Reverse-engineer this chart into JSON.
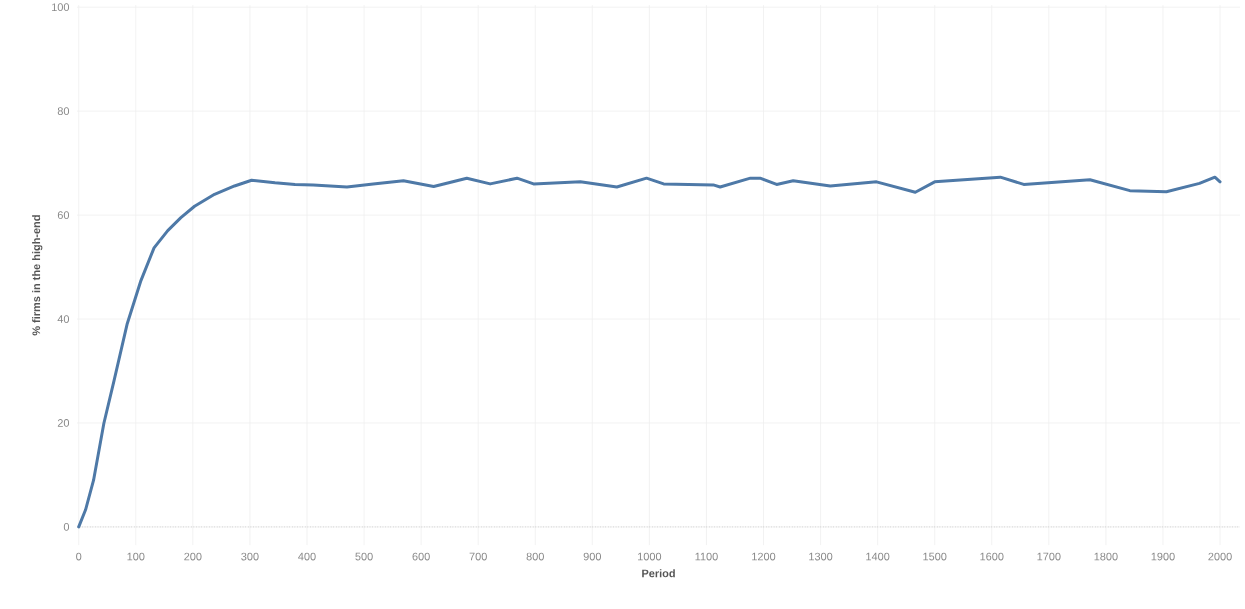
{
  "chart_data": {
    "type": "line",
    "xlabel": "Period",
    "ylabel": "% firms in the high-end",
    "x": [
      0,
      12,
      26,
      44,
      62,
      85,
      109,
      132,
      156,
      179,
      203,
      238,
      273,
      303,
      344,
      379,
      411,
      470,
      516,
      569,
      622,
      680,
      721,
      768,
      797,
      879,
      943,
      995,
      1025,
      1112,
      1124,
      1177,
      1194,
      1223,
      1252,
      1317,
      1398,
      1466,
      1500,
      1615,
      1656,
      1772,
      1842,
      1906,
      1964,
      1991,
      2000
    ],
    "series": [
      {
        "color": "#4e79a7",
        "values": [
          0,
          3.3,
          9.0,
          19.9,
          28.2,
          39.1,
          47.4,
          53.7,
          57.0,
          59.5,
          61.7,
          64.0,
          65.6,
          66.7,
          66.2,
          65.9,
          65.8,
          65.4,
          66.0,
          66.6,
          65.5,
          67.1,
          66.0,
          67.1,
          66.0,
          66.4,
          65.4,
          67.1,
          66.0,
          65.8,
          65.4,
          67.1,
          67.1,
          65.9,
          66.6,
          65.6,
          66.4,
          64.4,
          66.4,
          67.3,
          65.9,
          66.8,
          64.7,
          64.5,
          66.1,
          67.3,
          66.4
        ]
      }
    ],
    "xlim": [
      -3,
      2035
    ],
    "ylim": [
      -3.5,
      100.4
    ],
    "xticks": [
      0,
      100,
      200,
      300,
      400,
      500,
      600,
      700,
      800,
      900,
      1000,
      1100,
      1200,
      1300,
      1400,
      1500,
      1600,
      1700,
      1800,
      1900,
      2000
    ],
    "yticks": [
      0,
      20,
      40,
      60,
      80,
      100
    ],
    "ref_lines": [
      {
        "axis": "y",
        "value": 0,
        "color": "#a0a0a0",
        "line_style": "dotted"
      }
    ],
    "grid": true,
    "marker": "none",
    "line_style": "solid"
  }
}
